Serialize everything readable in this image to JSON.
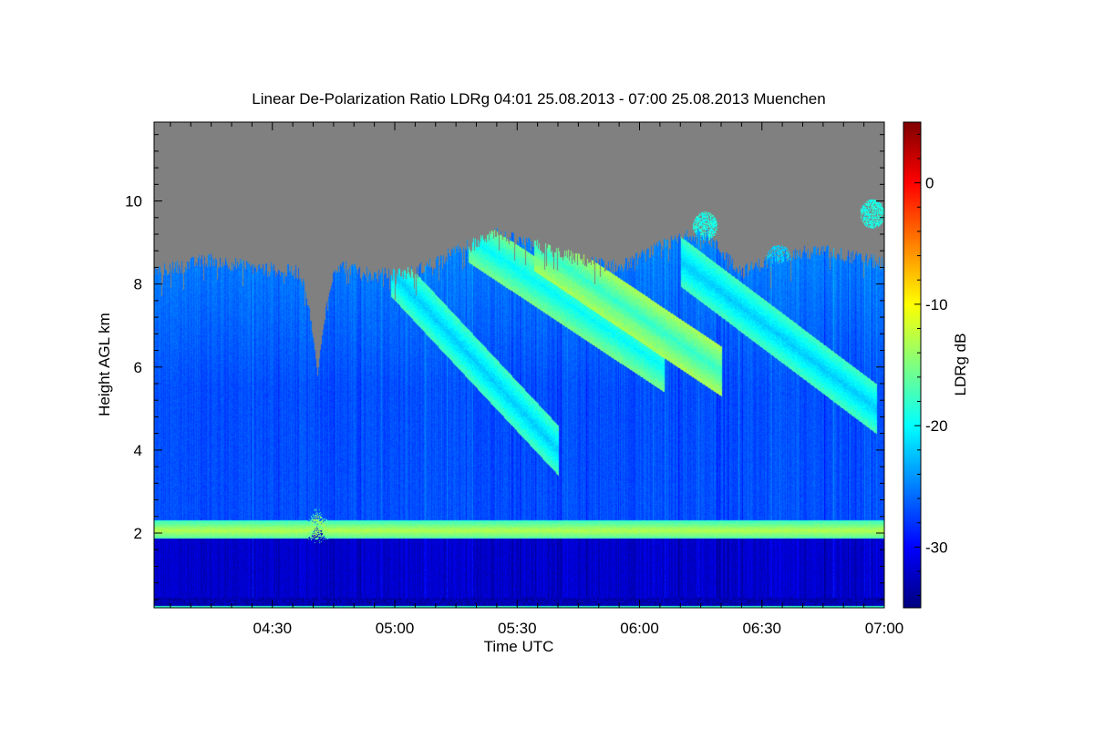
{
  "chart_data": {
    "type": "heatmap",
    "title": "Linear De-Polarization Ratio LDRg   04:01 25.08.2013 - 07:00 25.08.2013 Muenchen",
    "xlabel": "Time UTC",
    "ylabel": "Height AGL km",
    "colorbar_label": "LDRg dB",
    "x_range_min": [
      241,
      420
    ],
    "y_range_km": [
      0.2,
      11.9
    ],
    "x_ticks": [
      {
        "minute": 270,
        "label": "04:30"
      },
      {
        "minute": 300,
        "label": "05:00"
      },
      {
        "minute": 330,
        "label": "05:30"
      },
      {
        "minute": 360,
        "label": "06:00"
      },
      {
        "minute": 390,
        "label": "06:30"
      },
      {
        "minute": 420,
        "label": "07:00"
      }
    ],
    "y_ticks": [
      {
        "value": 2,
        "label": "2"
      },
      {
        "value": 4,
        "label": "4"
      },
      {
        "value": 6,
        "label": "6"
      },
      {
        "value": 8,
        "label": "8"
      },
      {
        "value": 10,
        "label": "10"
      }
    ],
    "colorbar_range_db": [
      -35,
      5
    ],
    "colorbar_ticks": [
      {
        "value": 0,
        "label": "0"
      },
      {
        "value": -10,
        "label": "-10"
      },
      {
        "value": -20,
        "label": "-20"
      },
      {
        "value": -30,
        "label": "-30"
      }
    ],
    "no_signal_color": "#808080",
    "features": {
      "cloud_top_km": [
        [
          241,
          8.3
        ],
        [
          255,
          8.6
        ],
        [
          265,
          8.4
        ],
        [
          275,
          8.3
        ],
        [
          285,
          8.5
        ],
        [
          295,
          8.2
        ],
        [
          305,
          8.3
        ],
        [
          315,
          8.8
        ],
        [
          325,
          9.2
        ],
        [
          335,
          8.9
        ],
        [
          345,
          8.6
        ],
        [
          355,
          8.4
        ],
        [
          365,
          8.9
        ],
        [
          375,
          9.3
        ],
        [
          385,
          8.3
        ],
        [
          395,
          8.7
        ],
        [
          405,
          8.8
        ],
        [
          420,
          8.5
        ]
      ],
      "gap": {
        "center_min": 281,
        "halfwidth_min": 2.2,
        "bottom_km": 5.8
      },
      "melting_layer": {
        "height_km": 2.07,
        "ldr_db": -13,
        "perturbation_min": 281
      },
      "fallstreaks": [
        {
          "t0": 301,
          "t1": 340,
          "h0": 8.1,
          "h1": 4.0,
          "ldr_db": -22
        },
        {
          "t0": 320,
          "t1": 366,
          "h0": 9.0,
          "h1": 6.0,
          "ldr_db": -20
        },
        {
          "t0": 336,
          "t1": 380,
          "h0": 8.8,
          "h1": 5.9,
          "ldr_db": -18
        },
        {
          "t0": 372,
          "t1": 418,
          "h0": 8.4,
          "h1": 5.0,
          "ldr_db": -22
        }
      ],
      "high_patches": [
        {
          "t_min": 376,
          "h_km": 9.4,
          "ldr_db": -19
        },
        {
          "t_min": 417,
          "h_km": 9.7,
          "ldr_db": -19
        },
        {
          "t_min": 394,
          "h_km": 8.6,
          "ldr_db": -22
        }
      ],
      "background_ldr_db": -27,
      "low_layer_ldr_db": -32
    }
  }
}
